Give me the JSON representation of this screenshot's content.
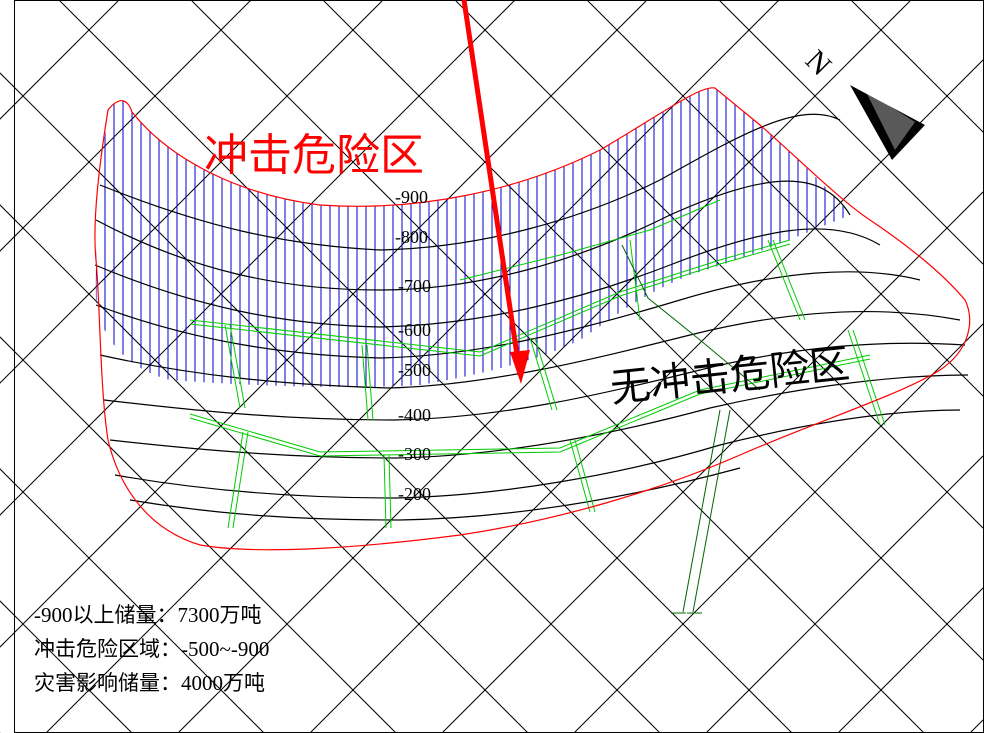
{
  "labels": {
    "danger_zone": "冲击危险区",
    "safe_zone": "无冲击危险区",
    "north": "N"
  },
  "depth_contours": [
    "-900",
    "-800",
    "-700",
    "-600",
    "-500",
    "-400",
    "-300",
    "-200"
  ],
  "stats": {
    "reserve_above": "-900以上储量：7300万吨",
    "danger_range": "冲击危险区域：-500~-900",
    "affected_reserve": "灾害影响储量：4000万吨"
  },
  "colors": {
    "boundary": "#ff0000",
    "hatch": "#0000cc",
    "roadway": "#00cc00",
    "arrow": "#ff0000",
    "contour": "#000000"
  }
}
